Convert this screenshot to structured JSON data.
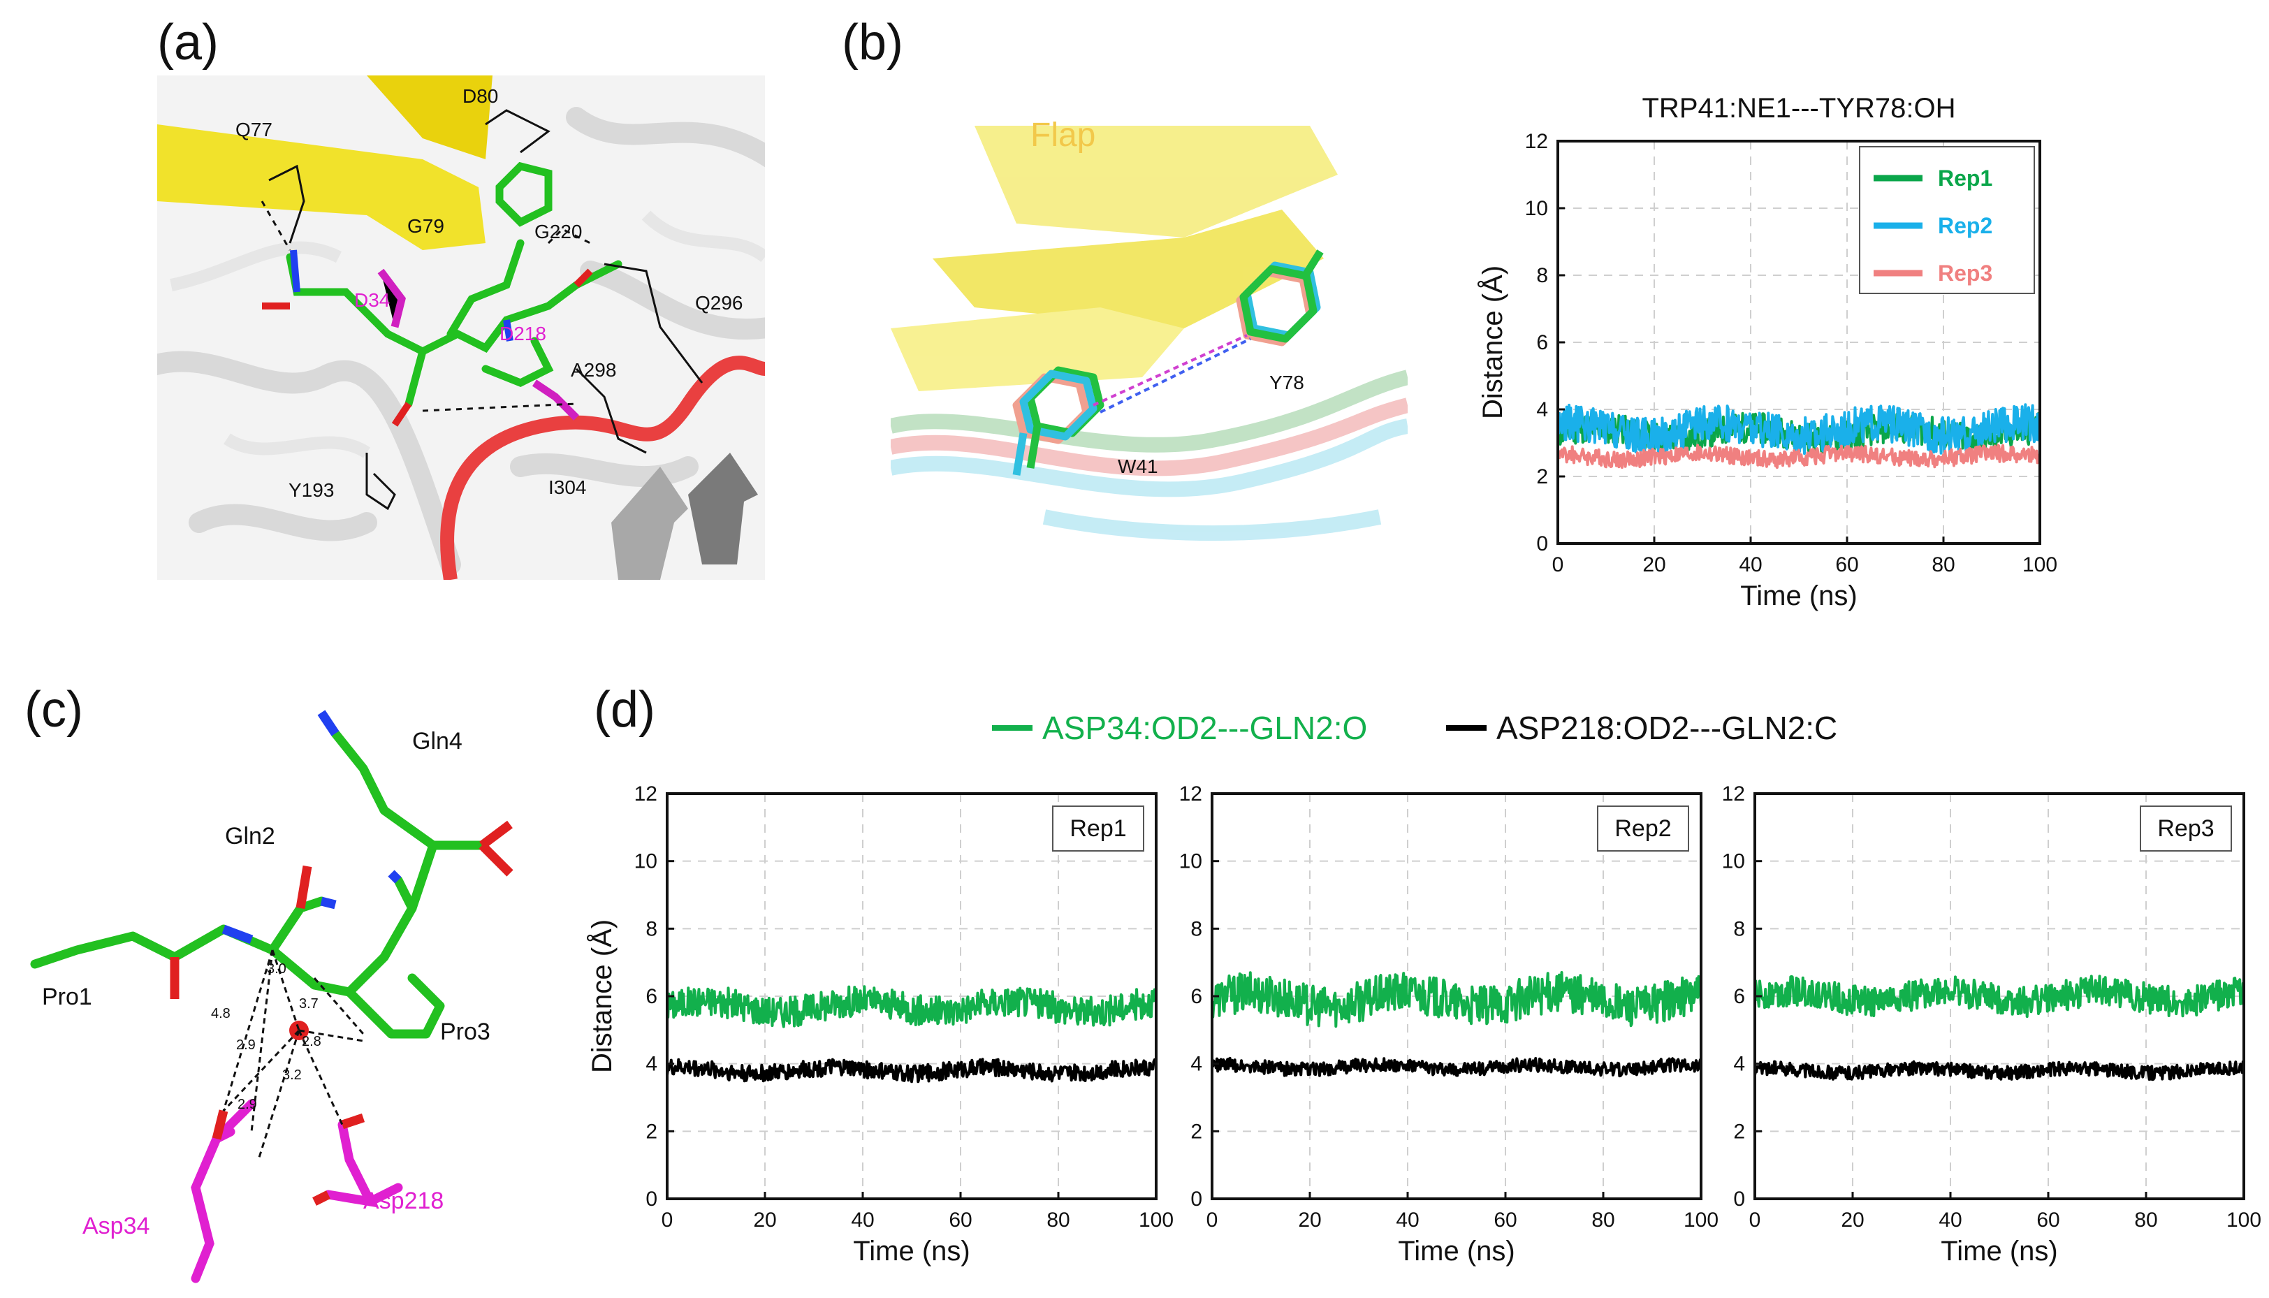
{
  "panels": {
    "a": {
      "label": "(a)",
      "residues": [
        "D80",
        "Q77",
        "G79",
        "G220",
        "D34",
        "D218",
        "Q296",
        "A298",
        "Y193",
        "I304"
      ]
    },
    "b": {
      "label": "(b)",
      "structure_labels": {
        "flap": "Flap",
        "y78": "Y78",
        "w41": "W41"
      }
    },
    "c": {
      "label": "(c)",
      "residues": [
        "Gln4",
        "Gln2",
        "Pro1",
        "Pro3",
        "Asp34",
        "Asp218"
      ],
      "distances": [
        "3.0",
        "3.7",
        "4.8",
        "2.9",
        "2.8",
        "3.2",
        "2.9"
      ]
    },
    "d": {
      "label": "(d)",
      "legend": [
        {
          "name": "ASP34:OD2---GLN2:O",
          "color": "#12b04c"
        },
        {
          "name": "ASP218:OD2---GLN2:C",
          "color": "#000000"
        }
      ]
    }
  },
  "colors": {
    "green": "#12b04c",
    "black": "#000000",
    "rep1": "#0aa64a",
    "rep2": "#1ab0ea",
    "rep3": "#f08080",
    "yellow": "#f5e63c",
    "magenta": "#e020d0"
  },
  "chart_data": [
    {
      "id": "b",
      "type": "line",
      "title": "TRP41:NE1---TYR78:OH",
      "xlabel": "Time (ns)",
      "ylabel": "Distance (Å)",
      "xlim": [
        0,
        100
      ],
      "ylim": [
        0,
        12
      ],
      "xticks": [
        "0",
        "20",
        "40",
        "60",
        "80",
        "100"
      ],
      "yticks": [
        "0",
        "2",
        "4",
        "6",
        "8",
        "10",
        "12"
      ],
      "grid": true,
      "legend_position": "top-right",
      "series": [
        {
          "name": "Rep1",
          "color": "#0aa64a",
          "mean": 3.3,
          "noise": 0.45
        },
        {
          "name": "Rep2",
          "color": "#1ab0ea",
          "mean": 3.4,
          "noise": 0.55
        },
        {
          "name": "Rep3",
          "color": "#f08080",
          "mean": 2.6,
          "noise": 0.25
        }
      ]
    },
    {
      "id": "d1",
      "type": "line",
      "label": "Rep1",
      "xlabel": "Time (ns)",
      "ylabel": "Distance (Å)",
      "xlim": [
        0,
        100
      ],
      "ylim": [
        0,
        12
      ],
      "xticks": [
        "0",
        "20",
        "40",
        "60",
        "80",
        "100"
      ],
      "yticks": [
        "0",
        "2",
        "4",
        "6",
        "8",
        "10",
        "12"
      ],
      "grid": true,
      "series": [
        {
          "name": "ASP34:OD2---GLN2:O",
          "color": "#12b04c",
          "mean": 5.7,
          "noise": 0.45
        },
        {
          "name": "ASP218:OD2---GLN2:C",
          "color": "#000000",
          "mean": 3.8,
          "noise": 0.25
        }
      ]
    },
    {
      "id": "d2",
      "type": "line",
      "label": "Rep2",
      "xlabel": "Time (ns)",
      "ylabel": "",
      "xlim": [
        0,
        100
      ],
      "ylim": [
        0,
        12
      ],
      "xticks": [
        "0",
        "20",
        "40",
        "60",
        "80",
        "100"
      ],
      "yticks": [
        "0",
        "2",
        "4",
        "6",
        "8",
        "10",
        "12"
      ],
      "grid": true,
      "series": [
        {
          "name": "ASP34:OD2---GLN2:O",
          "color": "#12b04c",
          "mean": 5.9,
          "noise": 0.6
        },
        {
          "name": "ASP218:OD2---GLN2:C",
          "color": "#000000",
          "mean": 3.9,
          "noise": 0.2
        }
      ]
    },
    {
      "id": "d3",
      "type": "line",
      "label": "Rep3",
      "xlabel": "Time (ns)",
      "ylabel": "",
      "xlim": [
        0,
        100
      ],
      "ylim": [
        0,
        12
      ],
      "xticks": [
        "0",
        "20",
        "40",
        "60",
        "80",
        "100"
      ],
      "yticks": [
        "0",
        "2",
        "4",
        "6",
        "8",
        "10",
        "12"
      ],
      "grid": true,
      "series": [
        {
          "name": "ASP34:OD2---GLN2:O",
          "color": "#12b04c",
          "mean": 6.0,
          "noise": 0.45
        },
        {
          "name": "ASP218:OD2---GLN2:C",
          "color": "#000000",
          "mean": 3.8,
          "noise": 0.2
        }
      ]
    }
  ]
}
